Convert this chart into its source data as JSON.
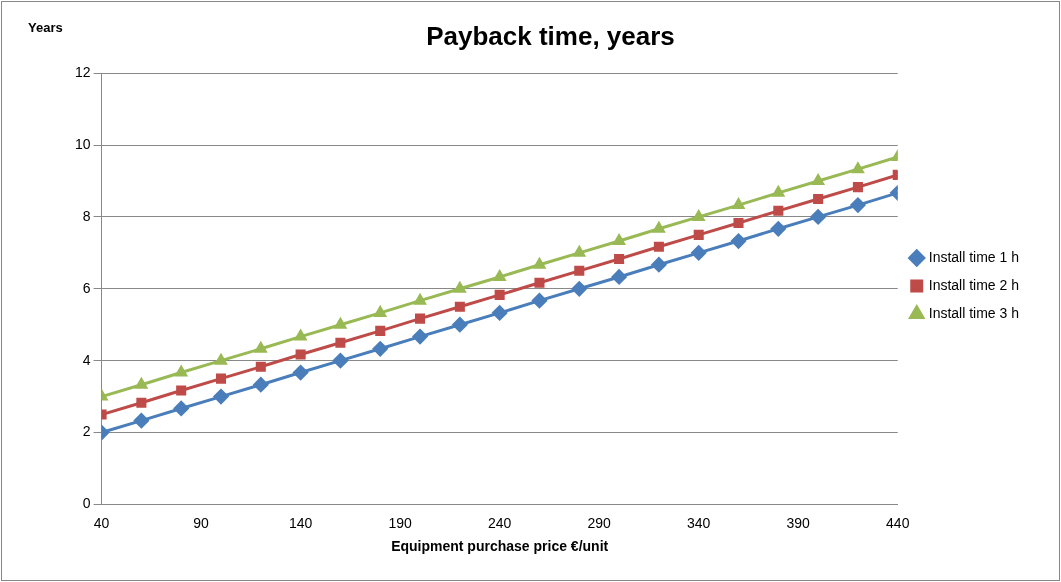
{
  "chart_data": {
    "type": "line",
    "title": "Payback time, years",
    "xlabel": "Equipment purchase price €/unit",
    "ylabel": "Years",
    "x": [
      40,
      60,
      80,
      100,
      120,
      140,
      160,
      180,
      200,
      220,
      240,
      260,
      280,
      300,
      320,
      340,
      360,
      380,
      400,
      420,
      440
    ],
    "series": [
      {
        "name": "Install time 1 h",
        "color": "#4a7ebb",
        "marker": "diamond",
        "values": [
          2,
          2.33,
          2.67,
          3,
          3.33,
          3.67,
          4,
          4.33,
          4.67,
          5,
          5.33,
          5.67,
          6,
          6.33,
          6.67,
          7,
          7.33,
          7.67,
          8,
          8.33,
          8.67
        ]
      },
      {
        "name": "Install time 2 h",
        "color": "#be4b48",
        "marker": "square",
        "values": [
          2.5,
          2.83,
          3.17,
          3.5,
          3.83,
          4.17,
          4.5,
          4.83,
          5.17,
          5.5,
          5.83,
          6.17,
          6.5,
          6.83,
          7.17,
          7.5,
          7.83,
          8.17,
          8.5,
          8.83,
          9.17
        ]
      },
      {
        "name": "Install time 3 h",
        "color": "#98b954",
        "marker": "triangle",
        "values": [
          3,
          3.33,
          3.67,
          4,
          4.33,
          4.67,
          5,
          5.33,
          5.67,
          6,
          6.33,
          6.67,
          7,
          7.33,
          7.67,
          8,
          8.33,
          8.67,
          9,
          9.33,
          9.67
        ]
      }
    ],
    "xlim": [
      40,
      440
    ],
    "xticks": [
      40,
      90,
      140,
      190,
      240,
      290,
      340,
      390,
      440
    ],
    "ylim": [
      0,
      12
    ],
    "yticks": [
      0,
      2,
      4,
      6,
      8,
      10,
      12
    ],
    "grid": "y",
    "legend": "right",
    "line_style": "solid"
  }
}
